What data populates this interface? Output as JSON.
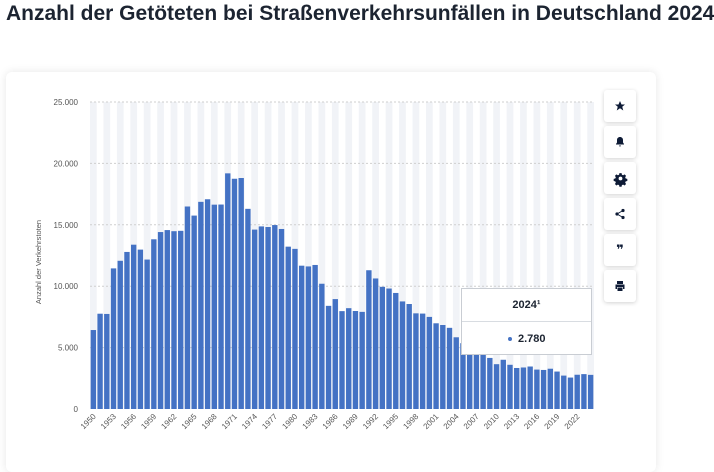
{
  "page": {
    "title": "Anzahl der Getöteten bei Straßenverkehrsunfällen in Deutschland 2024"
  },
  "toolbar": {
    "buttons": [
      {
        "name": "favorite",
        "icon": "star-icon"
      },
      {
        "name": "notify",
        "icon": "bell-icon"
      },
      {
        "name": "settings",
        "icon": "gear-icon"
      },
      {
        "name": "share",
        "icon": "share-icon"
      },
      {
        "name": "cite",
        "icon": "quote-icon",
        "glyph": "❞"
      },
      {
        "name": "print",
        "icon": "printer-icon"
      }
    ]
  },
  "tooltip": {
    "title": "2024¹",
    "value": "2.780"
  },
  "colors": {
    "bar": "#4472c4",
    "grid": "#cfcfcf",
    "band": "#f1f3f7",
    "text": "#1c2431",
    "axis_text": "#555555"
  },
  "chart_data": {
    "type": "bar",
    "title": "",
    "xlabel": "",
    "ylabel": "Anzahl der Verkehrstoten",
    "ylim": [
      0,
      25000
    ],
    "yticks": [
      0,
      5000,
      10000,
      15000,
      20000,
      25000
    ],
    "ytick_labels": [
      "0",
      "5.000",
      "10.000",
      "15.000",
      "20.000",
      "25.000"
    ],
    "xtick_labels": [
      "1950",
      "1953",
      "1956",
      "1959",
      "1962",
      "1965",
      "1968",
      "1971",
      "1974",
      "1977",
      "1980",
      "1983",
      "1986",
      "1989",
      "1992",
      "1995",
      "1998",
      "2001",
      "2004",
      "2007",
      "2010",
      "2013",
      "2016",
      "2019",
      "2022"
    ],
    "grid": true,
    "categories": [
      1950,
      1951,
      1952,
      1953,
      1954,
      1955,
      1956,
      1957,
      1958,
      1959,
      1960,
      1961,
      1962,
      1963,
      1964,
      1965,
      1966,
      1967,
      1968,
      1969,
      1970,
      1971,
      1972,
      1973,
      1974,
      1975,
      1976,
      1977,
      1978,
      1979,
      1980,
      1981,
      1982,
      1983,
      1984,
      1985,
      1986,
      1987,
      1988,
      1989,
      1990,
      1991,
      1992,
      1993,
      1994,
      1995,
      1996,
      1997,
      1998,
      1999,
      2000,
      2001,
      2002,
      2003,
      2004,
      2005,
      2006,
      2007,
      2008,
      2009,
      2010,
      2011,
      2012,
      2013,
      2014,
      2015,
      2016,
      2017,
      2018,
      2019,
      2020,
      2021,
      2022,
      2023,
      2024
    ],
    "values": [
      6430,
      7760,
      7740,
      11450,
      12070,
      12790,
      13380,
      12980,
      12170,
      13820,
      14410,
      14570,
      14480,
      14510,
      16490,
      15750,
      16870,
      17080,
      16640,
      16650,
      19190,
      18750,
      18810,
      16300,
      14610,
      14870,
      14820,
      14980,
      14660,
      13220,
      13040,
      11670,
      11610,
      11730,
      10200,
      8400,
      8950,
      7970,
      8210,
      7980,
      7910,
      11300,
      10630,
      9950,
      9810,
      9450,
      8760,
      8550,
      7790,
      7770,
      7500,
      6980,
      6840,
      6610,
      5840,
      5360,
      5090,
      4950,
      4480,
      4160,
      3650,
      4010,
      3600,
      3340,
      3380,
      3460,
      3210,
      3180,
      3280,
      3050,
      2720,
      2560,
      2790,
      2840,
      2780
    ]
  }
}
